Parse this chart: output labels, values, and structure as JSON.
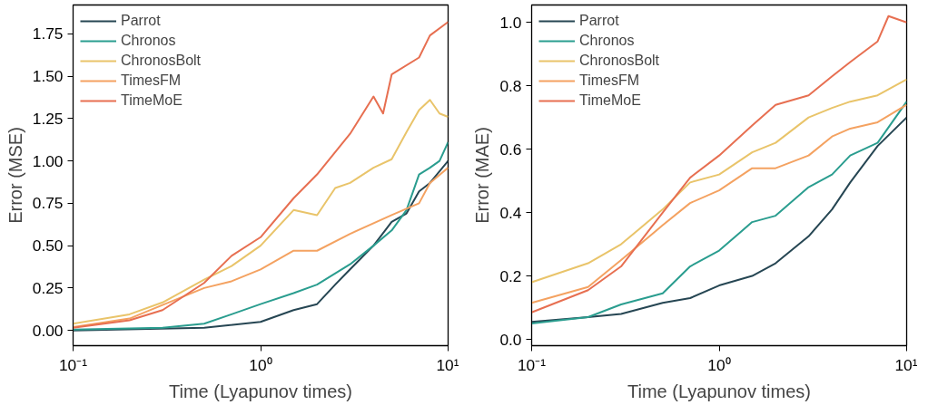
{
  "chart_data": [
    {
      "type": "line",
      "xlabel": "Time (Lyapunov times)",
      "ylabel": "Error (MSE)",
      "log": "x",
      "grid": false,
      "legend": "top left",
      "xlim": [
        0.1,
        10
      ],
      "xticks": [
        {
          "value": 0.1,
          "label": "10⁻¹"
        },
        {
          "value": 1,
          "label": "10⁰"
        },
        {
          "value": 10,
          "label": "10¹"
        }
      ],
      "ylim": [
        -0.09,
        1.92
      ],
      "yticks": [
        {
          "value": 0,
          "label": "0.00"
        },
        {
          "value": 0.25,
          "label": "0.25"
        },
        {
          "value": 0.5,
          "label": "0.50"
        },
        {
          "value": 0.75,
          "label": "0.75"
        },
        {
          "value": 1,
          "label": "1.00"
        },
        {
          "value": 1.25,
          "label": "1.25"
        },
        {
          "value": 1.5,
          "label": "1.50"
        },
        {
          "value": 1.75,
          "label": "1.75"
        }
      ],
      "series": [
        {
          "name": "Parrot",
          "color": "#264653",
          "x": [
            0.1,
            0.5,
            1,
            1.5,
            2,
            2.5,
            3,
            4,
            5,
            6,
            7,
            8,
            10
          ],
          "values": [
            0.0,
            0.015,
            0.05,
            0.12,
            0.155,
            0.27,
            0.36,
            0.5,
            0.64,
            0.69,
            0.82,
            0.87,
            1.0
          ]
        },
        {
          "name": "Chronos",
          "color": "#2a9d8f",
          "x": [
            0.1,
            0.3,
            0.5,
            0.7,
            1,
            1.5,
            2,
            3,
            4,
            5,
            6,
            7,
            8,
            9,
            10
          ],
          "values": [
            0.005,
            0.015,
            0.04,
            0.095,
            0.155,
            0.22,
            0.27,
            0.39,
            0.5,
            0.59,
            0.71,
            0.92,
            0.96,
            1.0,
            1.11
          ]
        },
        {
          "name": "ChronosBolt",
          "color": "#e9c46a",
          "x": [
            0.1,
            0.2,
            0.3,
            0.5,
            0.7,
            1,
            1.5,
            2,
            2.5,
            3,
            4,
            5,
            6,
            7,
            8,
            9,
            10
          ],
          "values": [
            0.04,
            0.095,
            0.165,
            0.3,
            0.38,
            0.5,
            0.71,
            0.68,
            0.84,
            0.87,
            0.96,
            1.01,
            1.17,
            1.3,
            1.36,
            1.28,
            1.26
          ]
        },
        {
          "name": "TimesFM",
          "color": "#f4a261",
          "x": [
            0.1,
            0.2,
            0.3,
            0.5,
            0.7,
            1,
            1.5,
            2,
            3,
            5,
            7,
            8,
            10
          ],
          "values": [
            0.02,
            0.07,
            0.15,
            0.25,
            0.29,
            0.36,
            0.47,
            0.47,
            0.57,
            0.68,
            0.75,
            0.87,
            0.96
          ]
        },
        {
          "name": "TimeMoE",
          "color": "#e76f51",
          "x": [
            0.1,
            0.2,
            0.3,
            0.5,
            0.7,
            1,
            1.5,
            2,
            3,
            4,
            4.5,
            5,
            7,
            8,
            10
          ],
          "values": [
            0.015,
            0.06,
            0.12,
            0.28,
            0.44,
            0.55,
            0.78,
            0.92,
            1.16,
            1.38,
            1.28,
            1.51,
            1.61,
            1.74,
            1.82
          ]
        }
      ]
    },
    {
      "type": "line",
      "xlabel": "Time (Lyapunov times)",
      "ylabel": "Error (MAE)",
      "log": "x",
      "grid": false,
      "legend": "top left",
      "xlim": [
        0.1,
        10
      ],
      "xticks": [
        {
          "value": 0.1,
          "label": "10⁻¹"
        },
        {
          "value": 1,
          "label": "10⁰"
        },
        {
          "value": 10,
          "label": "10¹"
        }
      ],
      "ylim": [
        -0.02,
        1.055
      ],
      "yticks": [
        {
          "value": 0,
          "label": "0.0"
        },
        {
          "value": 0.2,
          "label": "0.2"
        },
        {
          "value": 0.4,
          "label": "0.4"
        },
        {
          "value": 0.6,
          "label": "0.6"
        },
        {
          "value": 0.8,
          "label": "0.8"
        },
        {
          "value": 1,
          "label": "1.0"
        }
      ],
      "series": [
        {
          "name": "Parrot",
          "color": "#264653",
          "x": [
            0.1,
            0.2,
            0.3,
            0.5,
            0.7,
            1,
            1.5,
            2,
            3,
            4,
            5,
            7,
            10
          ],
          "values": [
            0.055,
            0.07,
            0.08,
            0.115,
            0.13,
            0.17,
            0.2,
            0.24,
            0.325,
            0.41,
            0.495,
            0.61,
            0.7
          ]
        },
        {
          "name": "Chronos",
          "color": "#2a9d8f",
          "x": [
            0.1,
            0.2,
            0.3,
            0.5,
            0.7,
            1,
            1.5,
            2,
            3,
            4,
            5,
            7,
            10
          ],
          "values": [
            0.05,
            0.07,
            0.11,
            0.145,
            0.23,
            0.28,
            0.37,
            0.39,
            0.48,
            0.52,
            0.58,
            0.62,
            0.75
          ]
        },
        {
          "name": "ChronosBolt",
          "color": "#e9c46a",
          "x": [
            0.1,
            0.2,
            0.3,
            0.5,
            0.7,
            1,
            1.5,
            2,
            3,
            4,
            5,
            7,
            10
          ],
          "values": [
            0.18,
            0.24,
            0.3,
            0.41,
            0.495,
            0.52,
            0.59,
            0.62,
            0.7,
            0.73,
            0.75,
            0.77,
            0.82
          ]
        },
        {
          "name": "TimesFM",
          "color": "#f4a261",
          "x": [
            0.1,
            0.2,
            0.3,
            0.5,
            0.7,
            1,
            1.5,
            2,
            3,
            4,
            5,
            7,
            10
          ],
          "values": [
            0.115,
            0.165,
            0.25,
            0.36,
            0.43,
            0.47,
            0.54,
            0.54,
            0.58,
            0.64,
            0.665,
            0.685,
            0.74
          ]
        },
        {
          "name": "TimeMoE",
          "color": "#e76f51",
          "x": [
            0.1,
            0.2,
            0.3,
            0.5,
            0.7,
            1,
            1.5,
            2,
            3,
            4,
            5,
            7,
            8,
            10
          ],
          "values": [
            0.085,
            0.155,
            0.23,
            0.4,
            0.51,
            0.58,
            0.675,
            0.74,
            0.77,
            0.83,
            0.875,
            0.94,
            1.02,
            1.0
          ]
        }
      ]
    }
  ]
}
